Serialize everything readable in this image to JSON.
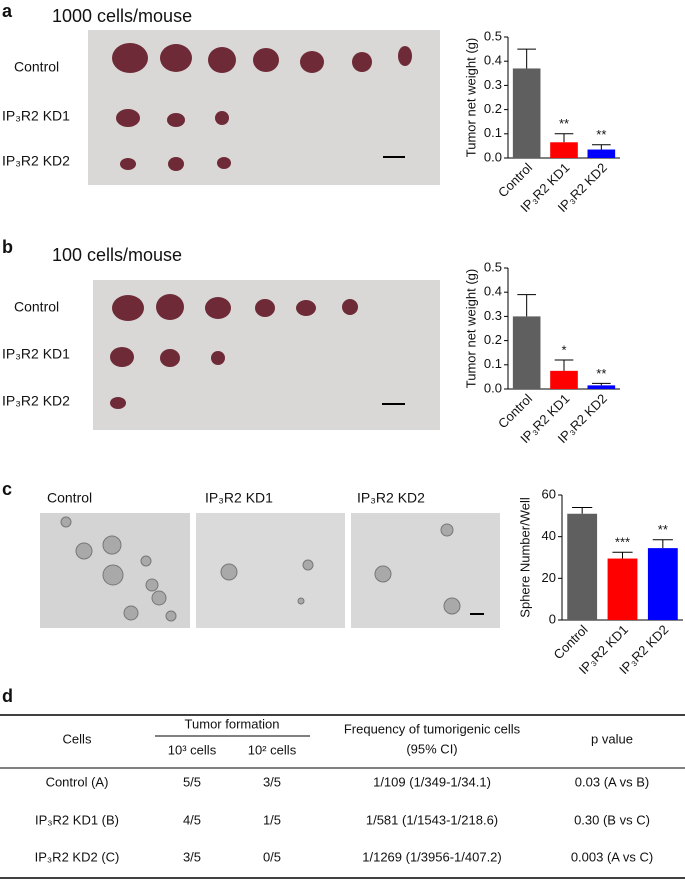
{
  "panels": [
    {
      "label": "a",
      "title": "1000 cells/mouse",
      "rows": [
        "Control",
        "IP₃R2 KD1",
        "IP₃R2 KD2"
      ]
    },
    {
      "label": "b",
      "title": "100 cells/mouse",
      "rows": [
        "Control",
        "IP₃R2 KD1",
        "IP₃R2 KD2"
      ]
    },
    {
      "label": "c",
      "images": [
        "Control",
        "IP₃R2 KD1",
        "IP₃R2 KD2"
      ]
    },
    {
      "label": "d"
    }
  ],
  "chart_data": [
    {
      "type": "bar",
      "y_label": "Tumor net weight (g)",
      "categories": [
        "Control",
        "IP₃R2 KD1",
        "IP₃R2 KD2"
      ],
      "values": [
        0.37,
        0.065,
        0.035
      ],
      "errors": [
        0.08,
        0.035,
        0.02
      ],
      "annotations": [
        null,
        "**",
        "**"
      ],
      "colors": [
        "#5f5f5f",
        "#ff0000",
        "#0000ff"
      ],
      "ylim": [
        0,
        0.5
      ],
      "yticks": [
        {
          "value": 0,
          "label": "0.0"
        },
        0.1,
        0.2,
        0.3,
        0.4,
        0.5
      ]
    },
    {
      "type": "bar",
      "y_label": "Tumor net weight (g)",
      "categories": [
        "Control",
        "IP₃R2 KD1",
        "IP₃R2 KD2"
      ],
      "values": [
        0.3,
        0.075,
        0.015
      ],
      "errors": [
        0.09,
        0.045,
        0.008
      ],
      "annotations": [
        null,
        "*",
        "**"
      ],
      "colors": [
        "#5f5f5f",
        "#ff0000",
        "#0000ff"
      ],
      "ylim": [
        0,
        0.5
      ],
      "yticks": [
        {
          "value": 0,
          "label": "0.0"
        },
        0.1,
        0.2,
        0.3,
        0.4,
        0.5
      ]
    },
    {
      "type": "bar",
      "y_label": "Sphere Number/Well",
      "categories": [
        "Control",
        "IP₃R2 KD1",
        "IP₃R2 KD2"
      ],
      "values": [
        51,
        29.5,
        34.5
      ],
      "errors": [
        3,
        3,
        4
      ],
      "annotations": [
        null,
        "***",
        "**"
      ],
      "colors": [
        "#5f5f5f",
        "#ff0000",
        "#0000ff"
      ],
      "ylim": [
        0,
        60
      ],
      "yticks": [
        0,
        20,
        40,
        60
      ]
    }
  ],
  "table": {
    "header": {
      "cells": "Cells",
      "tumor_formation": "Tumor formation",
      "sub": [
        "10³ cells",
        "10² cells"
      ],
      "frequency": [
        "Frequency of tumorigenic cells",
        "(95% CI)"
      ],
      "p": "p value"
    },
    "rows": [
      [
        "Control (A)",
        "5/5",
        "3/5",
        "1/109 (1/349-1/34.1)",
        "0.03 (A vs B)"
      ],
      [
        "IP₃R2 KD1 (B)",
        "4/5",
        "1/5",
        "1/581 (1/1543-1/218.6)",
        "0.30 (B vs C)"
      ],
      [
        "IP₃R2 KD2 (C)",
        "3/5",
        "0/5",
        "1/1269 (1/3956-1/407.2)",
        "0.003 (A vs C)"
      ]
    ]
  }
}
